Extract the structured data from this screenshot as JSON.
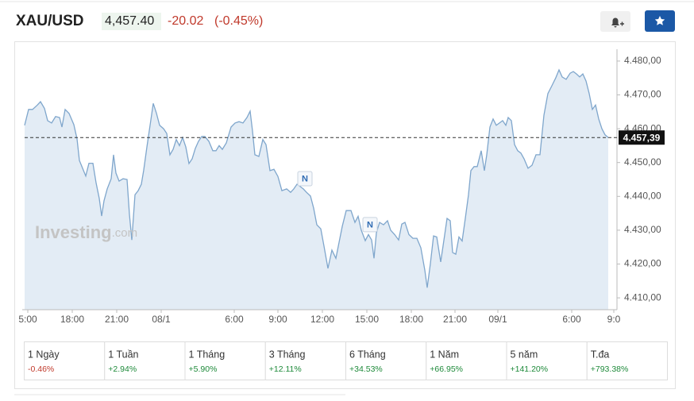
{
  "header": {
    "symbol": "XAU/USD",
    "price": "4,457.40",
    "change": "-20.02",
    "change_percent": "(-0.45%)"
  },
  "chart_data": {
    "type": "line",
    "color": "#7fa6cc",
    "fill": "#e3ecf5",
    "grid": false,
    "x": [
      -4,
      1,
      6,
      12,
      16,
      21,
      25,
      30,
      35,
      40,
      43,
      47,
      52,
      58,
      62,
      65,
      69,
      73,
      77,
      82,
      86,
      90,
      93,
      96,
      100,
      105,
      108,
      111,
      115,
      120,
      125,
      128,
      131,
      135,
      139,
      143,
      146,
      150,
      154,
      158,
      162,
      166,
      171,
      175,
      179,
      183,
      187,
      191,
      195,
      199,
      203,
      207,
      211,
      215,
      219,
      223,
      228,
      233,
      237,
      241,
      245,
      250,
      256,
      261,
      266,
      271,
      276,
      280,
      283,
      286,
      291,
      296,
      300,
      305,
      310,
      315,
      320,
      326,
      331,
      335,
      339,
      343,
      347,
      351,
      356,
      360,
      364,
      369,
      373,
      378,
      383,
      388,
      392,
      396,
      401,
      407,
      412,
      416,
      420,
      425,
      429,
      433,
      436,
      439,
      443,
      448,
      453,
      457,
      462,
      467,
      471,
      475,
      480,
      485,
      490,
      495,
      500,
      503,
      507,
      511,
      515,
      520,
      525,
      528,
      532,
      535,
      539,
      543,
      547,
      551,
      555,
      558,
      562,
      566,
      571,
      575,
      578,
      582,
      586,
      590,
      594,
      598,
      602,
      605,
      609,
      613,
      617,
      621,
      625,
      630,
      635,
      640,
      645,
      650,
      655,
      660,
      665,
      669,
      673,
      678,
      683,
      687,
      691,
      695,
      699,
      703,
      707,
      711,
      715,
      719,
      723,
      727,
      731
    ],
    "values": [
      4461,
      4465.7,
      4465.7,
      4467,
      4468,
      4466,
      4462.4,
      4461.7,
      4463.6,
      4463.3,
      4460.5,
      4465.7,
      4464.5,
      4461.2,
      4457,
      4450.6,
      4448.3,
      4446,
      4449.8,
      4449.8,
      4444,
      4439.4,
      4434.2,
      4438.7,
      4442.2,
      4445.2,
      4452.3,
      4446.9,
      4444.5,
      4445.2,
      4445,
      4434.7,
      4427.1,
      4440.5,
      4441.7,
      4443.6,
      4447.8,
      4454.6,
      4461,
      4467.5,
      4464.6,
      4461,
      4460,
      4458.6,
      4452.3,
      4453.9,
      4456.8,
      4455,
      4457.4,
      4454.6,
      4449.7,
      4451.1,
      4454.2,
      4456.3,
      4457.7,
      4457.7,
      4456.3,
      4453.5,
      4453.5,
      4455,
      4453.9,
      4455.8,
      4460.5,
      4461.7,
      4462.1,
      4461.7,
      4463.3,
      4465.2,
      4459.3,
      4452.3,
      4451.8,
      4456.8,
      4455.3,
      4447.6,
      4448,
      4445.9,
      4441.7,
      4442.2,
      4441.2,
      4442.2,
      4443.6,
      4442.9,
      4442.2,
      4441.2,
      4440.1,
      4436.5,
      4431.6,
      4430.4,
      4425.3,
      4418.7,
      4424.1,
      4421.7,
      4426.4,
      4431.1,
      4435.8,
      4435.8,
      4432.3,
      4434.1,
      4430,
      4426.9,
      4428.7,
      4427.1,
      4421.7,
      4429.2,
      4432.3,
      4431.6,
      4432.8,
      4430,
      4428.7,
      4427.1,
      4431.8,
      4432.3,
      4428.7,
      4427.6,
      4427.6,
      4424.8,
      4418.2,
      4413,
      4420.1,
      4428.3,
      4428,
      4420.6,
      4428.6,
      4433.5,
      4432.8,
      4423.4,
      4422.9,
      4428,
      4426.8,
      4433.5,
      4440.5,
      4447.6,
      4448.8,
      4448.8,
      4453.5,
      4447.6,
      4452.3,
      4460.5,
      4462.9,
      4461,
      4461.7,
      4462.4,
      4461,
      4463.3,
      4462.4,
      4455.3,
      4453.5,
      4452.8,
      4451.1,
      4448.3,
      4449.2,
      4452.3,
      4452.3,
      4464,
      4470.4,
      4472.7,
      4475.1,
      4477.4,
      4475.3,
      4474.6,
      4476.4,
      4476.9,
      4476.2,
      4475.3,
      4476.2,
      4474.1,
      4470.4,
      4465.7,
      4467,
      4462.9,
      4460,
      4458.2,
      4457.4
    ],
    "xlim": [
      -4,
      740
    ],
    "xticks": [
      {
        "value": 0,
        "label": "5:00"
      },
      {
        "value": 56,
        "label": "18:00"
      },
      {
        "value": 112,
        "label": "21:00"
      },
      {
        "value": 168,
        "label": "08/1"
      },
      {
        "value": 260,
        "label": "6:00"
      },
      {
        "value": 315,
        "label": "9:00"
      },
      {
        "value": 371,
        "label": "12:00"
      },
      {
        "value": 427,
        "label": "15:00"
      },
      {
        "value": 483,
        "label": "18:00"
      },
      {
        "value": 538,
        "label": "21:00"
      },
      {
        "value": 592,
        "label": "09/1"
      },
      {
        "value": 685,
        "label": "6:00"
      },
      {
        "value": 738,
        "label": "9:0"
      }
    ],
    "ylim": [
      4406.5,
      4483.5
    ],
    "yticks": [
      {
        "value": 4410,
        "label": "4.410,00"
      },
      {
        "value": 4420,
        "label": "4.420,00"
      },
      {
        "value": 4430,
        "label": "4.430,00"
      },
      {
        "value": 4440,
        "label": "4.440,00"
      },
      {
        "value": 4450,
        "label": "4.450,00"
      },
      {
        "value": 4460,
        "label": "4.460,00"
      },
      {
        "value": 4470,
        "label": "4.470,00"
      },
      {
        "value": 4480,
        "label": "4.480,00"
      }
    ],
    "last_price": {
      "value": 4457.39,
      "label": "4.457,39"
    },
    "annotations": [
      {
        "text": "N",
        "x": 349,
        "y": 4443.6
      },
      {
        "text": "N",
        "x": 431,
        "y": 4430
      }
    ],
    "watermark": [
      "Investing",
      ".com"
    ]
  },
  "performance": [
    {
      "period": "1 Ngày",
      "change": "-0.46%"
    },
    {
      "period": "1 Tuần",
      "change": "+2.94%"
    },
    {
      "period": "1 Tháng",
      "change": "+5.90%"
    },
    {
      "period": "3 Tháng",
      "change": "+12.11%"
    },
    {
      "period": "6 Tháng",
      "change": "+34.53%"
    },
    {
      "period": "1 Năm",
      "change": "+66.95%"
    },
    {
      "period": "5 năm",
      "change": "+141.20%"
    },
    {
      "period": "T.đa",
      "change": "+793.38%"
    }
  ]
}
